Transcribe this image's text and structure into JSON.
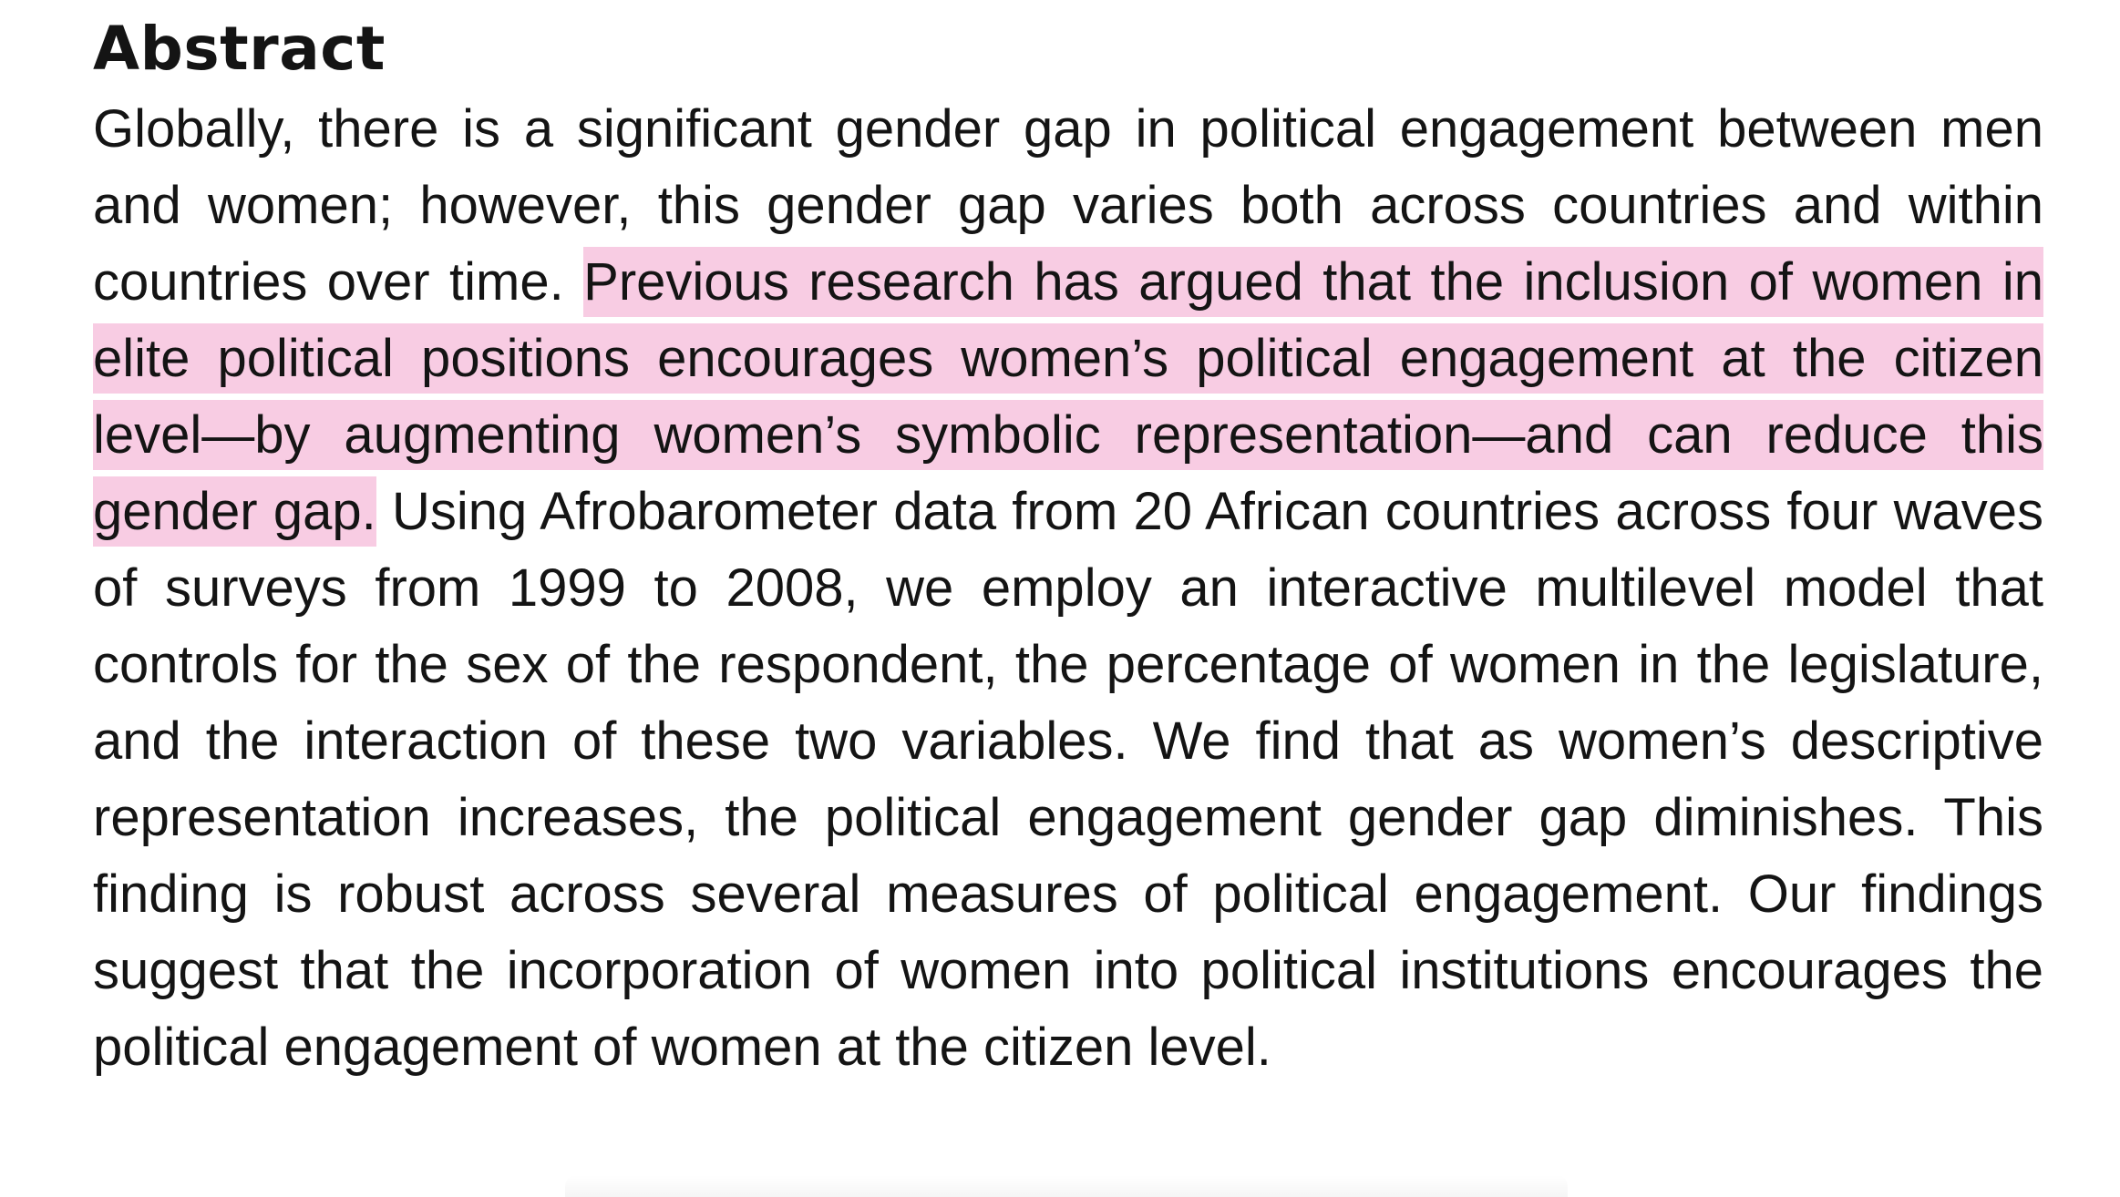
{
  "section": {
    "heading": "Abstract"
  },
  "abstract": {
    "before_highlight": "Globally, there is a significant gender gap in political engagement between men and women; however, this gender gap varies both across countries and within countries over time.",
    "highlighted": "Previous research has argued that the inclusion of women in elite political positions encourages women’s political engagement at the citizen level—by augmenting women’s symbolic representation—and can reduce this gender gap.",
    "after_highlight": "Using Afrobarometer data from 20 African countries across four waves of surveys from 1999 to 2008, we employ an interactive multilevel model that controls for the sex of the respondent, the percent­age of women in the legislature, and the interaction of these two variables. We find that as women’s descriptive representation increases, the political engagement gender gap diminishes. This finding is robust across several mea­sures of political engagement. Our findings suggest that the incorporation of women into political institutions encourages the political engagement of women at the citizen level."
  },
  "colors": {
    "highlight": "#f8cce3",
    "text": "#141414"
  }
}
